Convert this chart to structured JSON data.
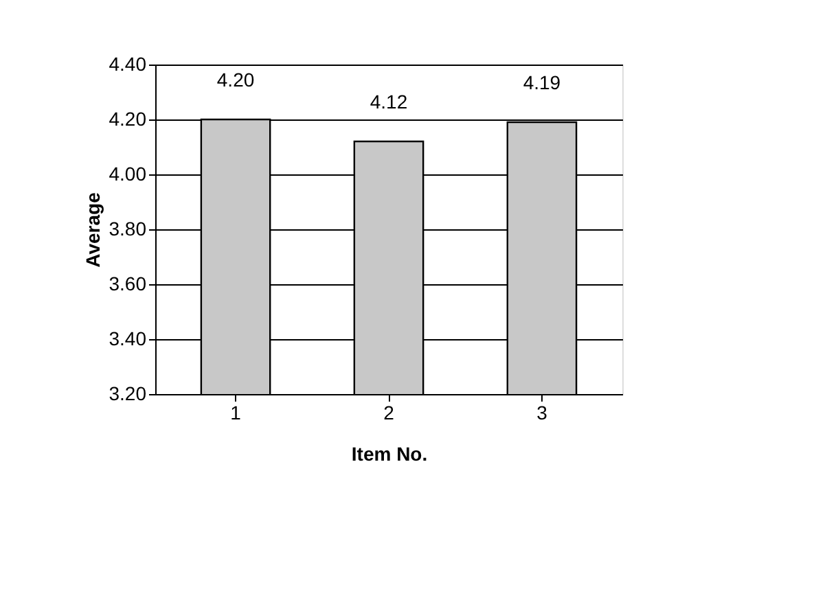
{
  "chart_data": {
    "type": "bar",
    "xlabel": "Item No.",
    "ylabel": "Average",
    "categories": [
      "1",
      "2",
      "3"
    ],
    "series": [
      {
        "color": "#c8c8c8",
        "values": [
          4.2,
          4.12,
          4.19
        ],
        "value_labels": [
          "4.20",
          "4.12",
          "4.19"
        ]
      }
    ],
    "ylim": [
      3.2,
      4.4
    ],
    "yticks": [
      {
        "value": 3.2,
        "label": "3.20"
      },
      {
        "value": 3.4,
        "label": "3.40"
      },
      {
        "value": 3.6,
        "label": "3.60"
      },
      {
        "value": 3.8,
        "label": "3.80"
      },
      {
        "value": 4.0,
        "label": "4.00"
      },
      {
        "value": 4.2,
        "label": "4.20"
      },
      {
        "value": 4.4,
        "label": "4.40"
      }
    ],
    "grid": "y",
    "legend": false
  }
}
